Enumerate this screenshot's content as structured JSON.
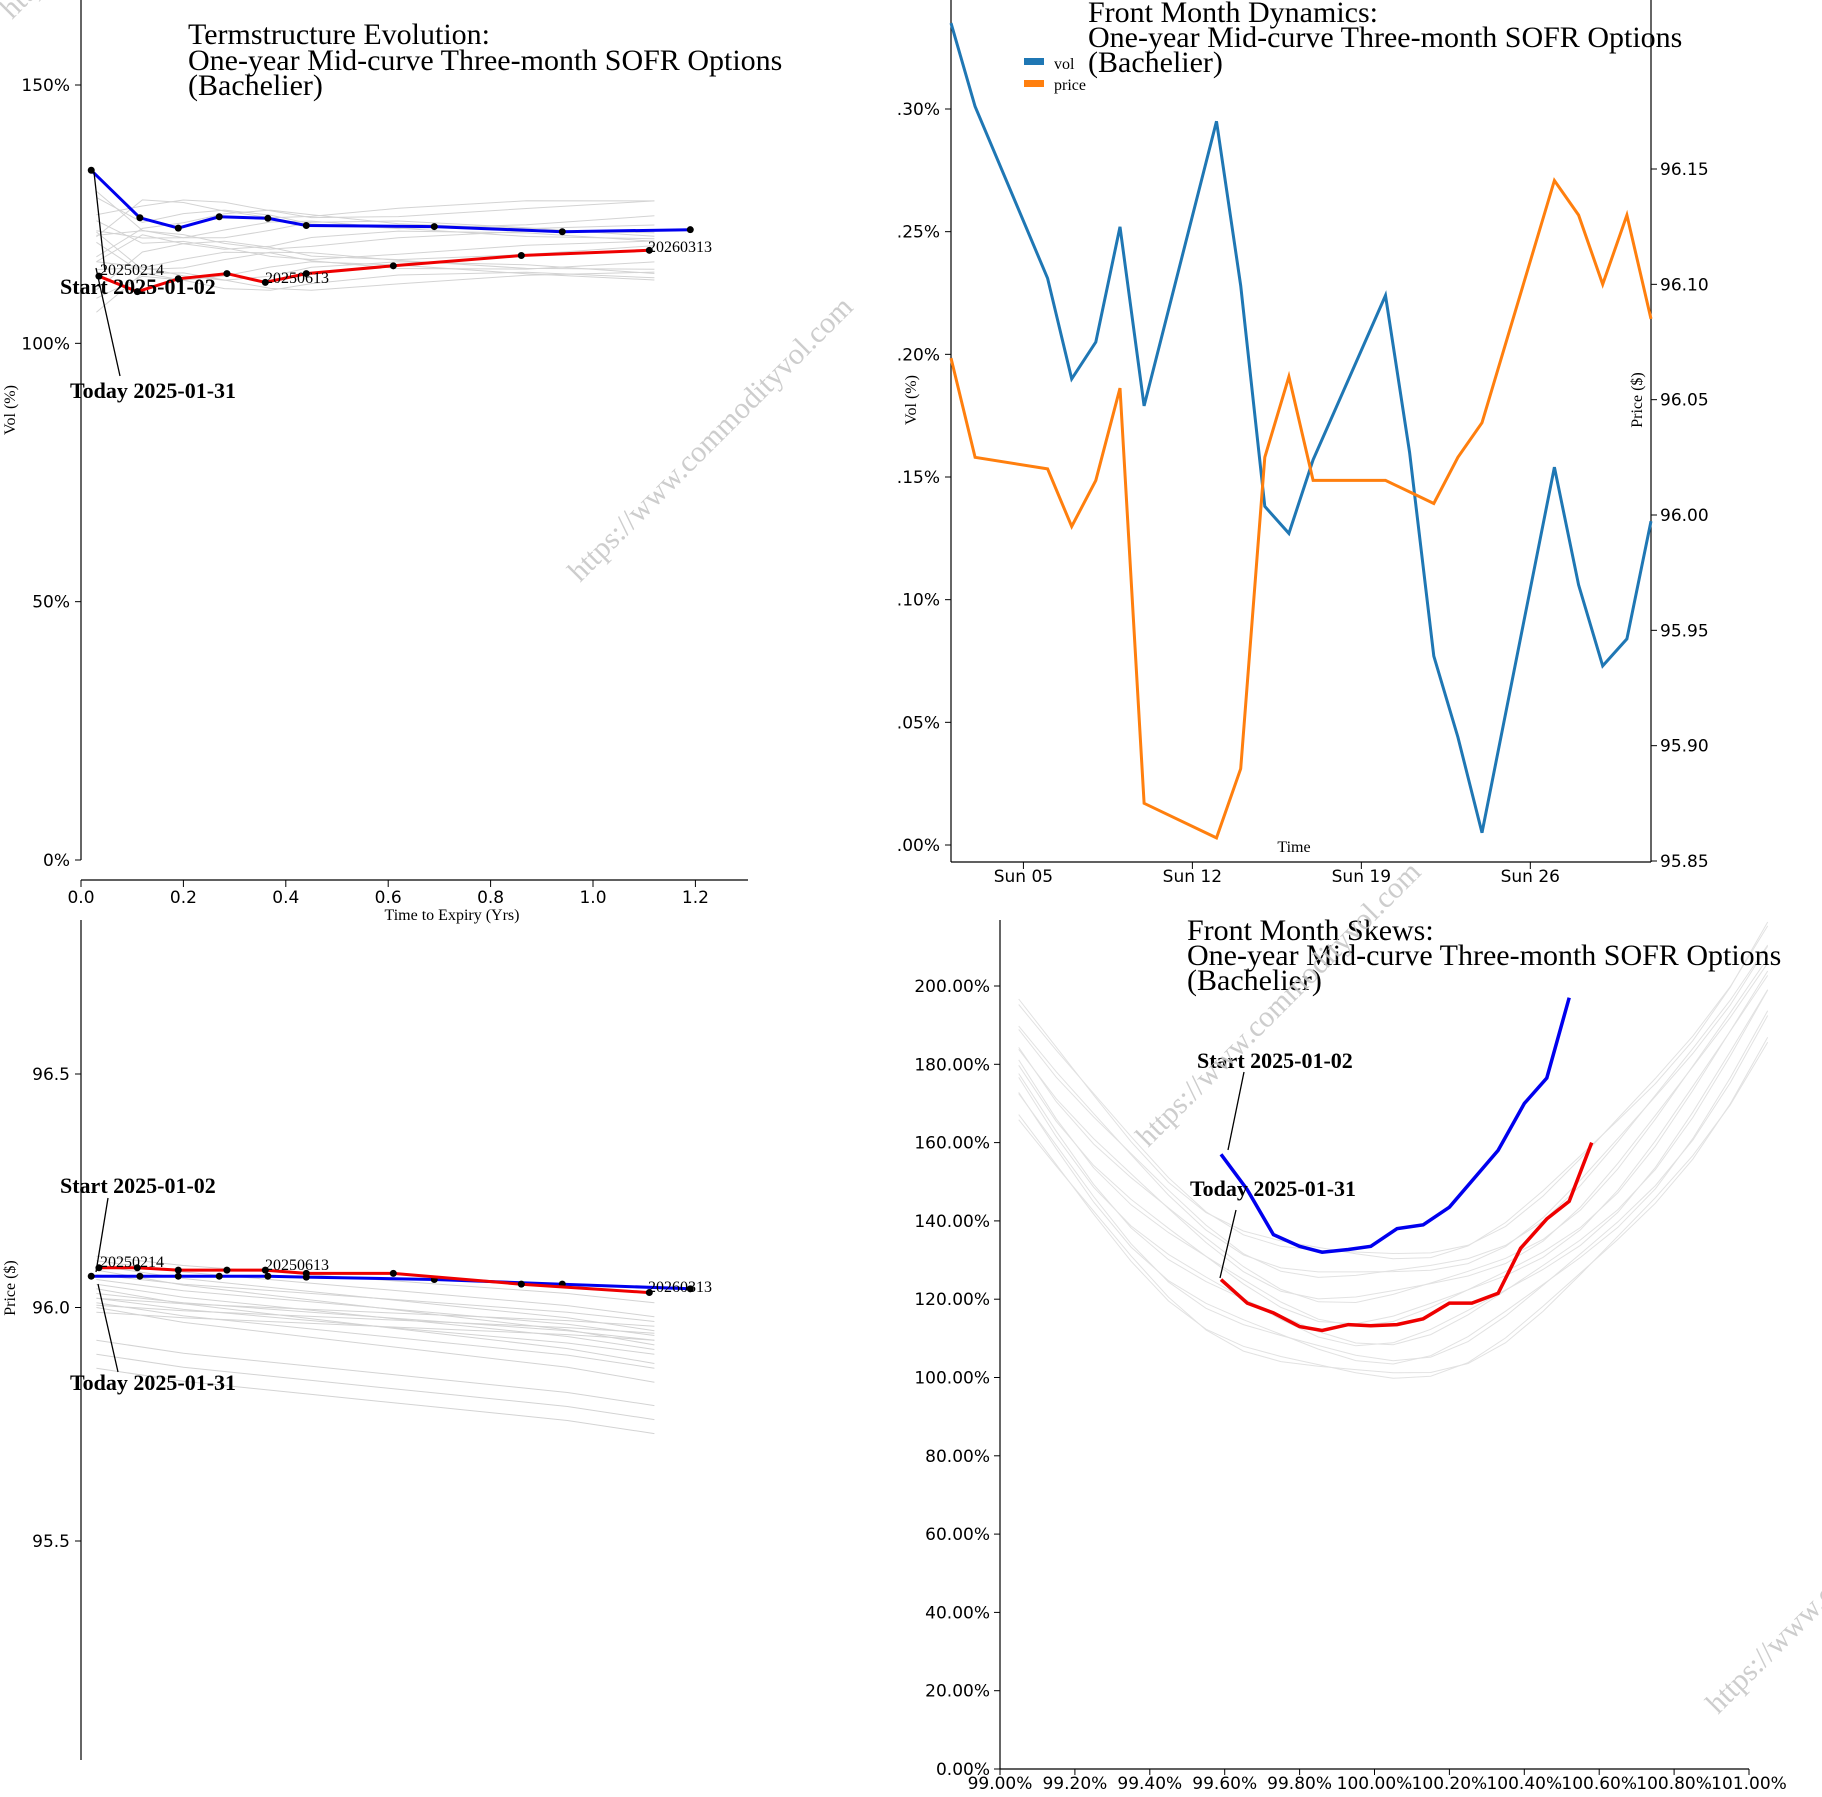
{
  "charts": {
    "termstructure": {
      "title_lines": [
        "Termstructure Evolution:",
        "One-year Mid-curve Three-month SOFR Options",
        "(Bachelier)"
      ],
      "xlabel": "Time to Expiry (Yrs)",
      "ylabel": "Vol (%)"
    },
    "price": {
      "ylabel": "Price ($)"
    },
    "dynamics": {
      "title_lines": [
        "Front Month Dynamics:",
        "One-year Mid-curve Three-month SOFR Options",
        "(Bachelier)"
      ],
      "xlabel": "Time",
      "ylabel_left": "Vol (%)",
      "ylabel_right": "Price ($)",
      "legend": [
        "vol",
        "price"
      ]
    },
    "skews": {
      "title_lines": [
        "Front Month Skews:",
        "One-year Mid-curve Three-month SOFR Options",
        "(Bachelier)"
      ]
    }
  },
  "annotations": {
    "start": "Start 2025-01-02",
    "today": "Today 2025-01-31"
  },
  "watermark": "https://www.commodityvol.com",
  "colors": {
    "start": "#0000ee",
    "today": "#ee0000",
    "vol": "#1f77b4",
    "price": "#ff7f0e",
    "history": "#d3d3d3"
  },
  "chart_data": [
    {
      "id": "termstructure",
      "type": "line",
      "xlabel": "Time to Expiry (Yrs)",
      "ylabel": "Vol (%)",
      "xlim": [
        0,
        1.3
      ],
      "ylim": [
        0,
        1.5
      ],
      "xticks": [
        "0.0",
        "0.2",
        "0.4",
        "0.6",
        "0.8",
        "1.0",
        "1.2"
      ],
      "yticks": [
        "0%",
        "50%",
        "100%",
        "150%"
      ],
      "contract_labels": [
        "20250214",
        "20250613",
        "20260313"
      ],
      "series": [
        {
          "name": "Start 2025-01-02",
          "color": "#0000ee",
          "x": [
            0.02,
            0.115,
            0.19,
            0.27,
            0.365,
            0.44,
            0.69,
            0.94,
            1.19
          ],
          "y": [
            1.335,
            1.243,
            1.223,
            1.245,
            1.242,
            1.228,
            1.226,
            1.216,
            1.22
          ]
        },
        {
          "name": "Today 2025-01-31",
          "color": "#ee0000",
          "x": [
            0.035,
            0.11,
            0.19,
            0.285,
            0.36,
            0.44,
            0.61,
            0.86,
            1.11
          ],
          "y": [
            1.13,
            1.1,
            1.125,
            1.135,
            1.118,
            1.135,
            1.15,
            1.17,
            1.18
          ]
        }
      ]
    },
    {
      "id": "price",
      "type": "line",
      "xlim": [
        0,
        1.3
      ],
      "ylim": [
        95.0,
        96.9
      ],
      "ylabel": "Price ($)",
      "yticks": [
        "95.5",
        "96.0",
        "96.5"
      ],
      "contract_labels": [
        "20250214",
        "20250613",
        "20260313"
      ],
      "series": [
        {
          "name": "Start 2025-01-02",
          "color": "#0000ee",
          "x": [
            0.02,
            0.115,
            0.19,
            0.27,
            0.365,
            0.44,
            0.69,
            0.94,
            1.19
          ],
          "y": [
            96.067,
            96.067,
            96.067,
            96.067,
            96.067,
            96.065,
            96.06,
            96.05,
            96.04
          ]
        },
        {
          "name": "Today 2025-01-31",
          "color": "#ee0000",
          "x": [
            0.035,
            0.11,
            0.19,
            0.285,
            0.36,
            0.44,
            0.61,
            0.86,
            1.11
          ],
          "y": [
            96.085,
            96.085,
            96.08,
            96.08,
            96.08,
            96.073,
            96.073,
            96.05,
            96.032
          ]
        }
      ]
    },
    {
      "id": "dynamics",
      "type": "line",
      "xlabel": "Time",
      "xlim": [
        "2025-01-02",
        "2025-01-31"
      ],
      "xticks": [
        "Sun 05",
        "Sun 12",
        "Sun 19",
        "Sun 26"
      ],
      "y_left_ticks": [
        ".00%",
        ".05%",
        ".10%",
        ".15%",
        ".20%",
        ".25%",
        ".30%"
      ],
      "y_right_ticks": [
        "95.85",
        "95.90",
        "95.95",
        "96.00",
        "96.05",
        "96.10",
        "96.15"
      ],
      "series": [
        {
          "name": "vol",
          "axis": "left",
          "color": "#1f77b4",
          "x": [
            "2025-01-02",
            "2025-01-03",
            "2025-01-06",
            "2025-01-07",
            "2025-01-08",
            "2025-01-09",
            "2025-01-10",
            "2025-01-13",
            "2025-01-14",
            "2025-01-15",
            "2025-01-16",
            "2025-01-17",
            "2025-01-20",
            "2025-01-21",
            "2025-01-22",
            "2025-01-23",
            "2025-01-24",
            "2025-01-27",
            "2025-01-28",
            "2025-01-29",
            "2025-01-30",
            "2025-01-31"
          ],
          "y": [
            0.335,
            0.301,
            0.231,
            0.19,
            0.205,
            0.252,
            0.179,
            0.295,
            0.228,
            0.138,
            0.127,
            0.157,
            0.224,
            0.16,
            0.077,
            0.044,
            0.005,
            0.154,
            0.106,
            0.073,
            0.084,
            0.132
          ]
        },
        {
          "name": "price",
          "axis": "right",
          "color": "#ff7f0e",
          "x": [
            "2025-01-02",
            "2025-01-03",
            "2025-01-06",
            "2025-01-07",
            "2025-01-08",
            "2025-01-09",
            "2025-01-10",
            "2025-01-13",
            "2025-01-14",
            "2025-01-15",
            "2025-01-16",
            "2025-01-17",
            "2025-01-20",
            "2025-01-21",
            "2025-01-22",
            "2025-01-23",
            "2025-01-24",
            "2025-01-27",
            "2025-01-28",
            "2025-01-29",
            "2025-01-30",
            "2025-01-31"
          ],
          "y": [
            96.068,
            96.025,
            96.02,
            95.995,
            96.015,
            96.055,
            95.875,
            95.86,
            95.89,
            96.025,
            96.06,
            96.015,
            96.015,
            96.01,
            96.005,
            96.025,
            96.04,
            96.145,
            96.13,
            96.1,
            96.13,
            96.085
          ]
        }
      ]
    },
    {
      "id": "skews",
      "type": "line",
      "xlim": [
        0.99,
        1.01
      ],
      "ylim": [
        0,
        2.1
      ],
      "xticks": [
        "99.00%",
        "99.20%",
        "99.40%",
        "99.60%",
        "99.80%",
        "100.00%",
        "100.20%",
        "100.40%",
        "100.60%",
        "100.80%",
        "101.00%"
      ],
      "yticks": [
        "0.00%",
        "20.00%",
        "40.00%",
        "60.00%",
        "80.00%",
        "100.00%",
        "120.00%",
        "140.00%",
        "160.00%",
        "180.00%",
        "200.00%"
      ],
      "series": [
        {
          "name": "Start 2025-01-02",
          "color": "#0000ee",
          "x": [
            0.9959,
            0.9966,
            0.9973,
            0.998,
            0.9986,
            0.9993,
            0.9999,
            1.0006,
            1.0013,
            1.002,
            1.0033,
            1.004,
            1.0046,
            1.0052
          ],
          "y": [
            1.57,
            1.48,
            1.365,
            1.335,
            1.32,
            1.327,
            1.335,
            1.38,
            1.39,
            1.435,
            1.58,
            1.7,
            1.765,
            1.97
          ]
        },
        {
          "name": "Today 2025-01-31",
          "color": "#ee0000",
          "x": [
            0.9959,
            0.9966,
            0.9973,
            0.998,
            0.9986,
            0.9993,
            0.9999,
            1.0006,
            1.0013,
            1.002,
            1.0026,
            1.0033,
            1.0039,
            1.0046,
            1.0052,
            1.0058
          ],
          "y": [
            1.25,
            1.19,
            1.165,
            1.13,
            1.12,
            1.135,
            1.132,
            1.135,
            1.15,
            1.19,
            1.19,
            1.215,
            1.33,
            1.405,
            1.45,
            1.6
          ]
        }
      ]
    }
  ]
}
